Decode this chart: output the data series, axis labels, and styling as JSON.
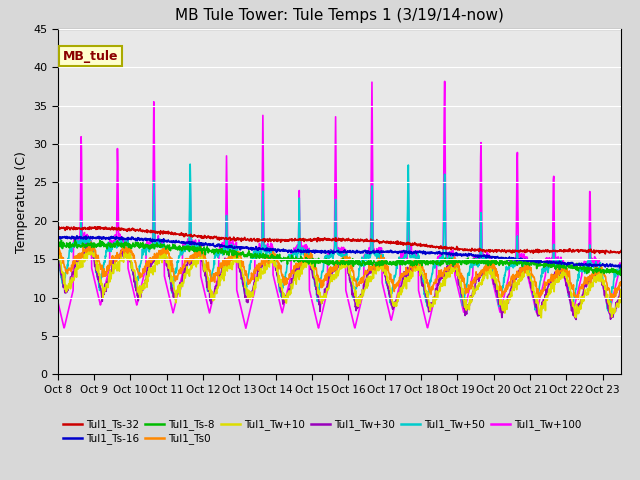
{
  "title": "MB Tule Tower: Tule Temps 1 (3/19/14-now)",
  "ylabel": "Temperature (C)",
  "ylim": [
    0,
    45
  ],
  "yticks": [
    0,
    5,
    10,
    15,
    20,
    25,
    30,
    35,
    40,
    45
  ],
  "xtick_labels": [
    "Oct 8",
    "Oct 9",
    "Oct 10",
    "Oct 11",
    "Oct 12",
    "Oct 13",
    "Oct 14",
    "Oct 15",
    "Oct 16",
    "Oct 17",
    "Oct 18",
    "Oct 19",
    "Oct 20",
    "Oct 21",
    "Oct 22",
    "Oct 23"
  ],
  "legend_label": "MB_tule",
  "fig_facecolor": "#d8d8d8",
  "ax_facecolor": "#e8e8e8",
  "grid_color": "#ffffff",
  "series_order": [
    "Tul1_Tw+100",
    "Tul1_Tw+50",
    "Tul1_Tw+30",
    "Tul1_Tw+10",
    "Tul1_Ts0",
    "Tul1_Ts-8",
    "Tul1_Ts-16",
    "Tul1_Ts-32"
  ],
  "series": {
    "Tul1_Ts-32": {
      "color": "#cc0000",
      "lw": 1.2,
      "label": "Tul1_Ts-32"
    },
    "Tul1_Ts-16": {
      "color": "#0000cc",
      "lw": 1.2,
      "label": "Tul1_Ts-16"
    },
    "Tul1_Ts-8": {
      "color": "#00bb00",
      "lw": 1.2,
      "label": "Tul1_Ts-8"
    },
    "Tul1_Ts0": {
      "color": "#ff8800",
      "lw": 1.2,
      "label": "Tul1_Ts0"
    },
    "Tul1_Tw+10": {
      "color": "#dddd00",
      "lw": 1.2,
      "label": "Tul1_Tw+10"
    },
    "Tul1_Tw+30": {
      "color": "#9900bb",
      "lw": 1.2,
      "label": "Tul1_Tw+30"
    },
    "Tul1_Tw+50": {
      "color": "#00cccc",
      "lw": 1.2,
      "label": "Tul1_Tw+50"
    },
    "Tul1_Tw+100": {
      "color": "#ff00ff",
      "lw": 1.2,
      "label": "Tul1_Tw+100"
    }
  },
  "legend_order": [
    "Tul1_Ts-32",
    "Tul1_Ts-16",
    "Tul1_Ts-8",
    "Tul1_Ts0",
    "Tul1_Tw+10",
    "Tul1_Tw+30",
    "Tul1_Tw+50",
    "Tul1_Tw+100"
  ]
}
